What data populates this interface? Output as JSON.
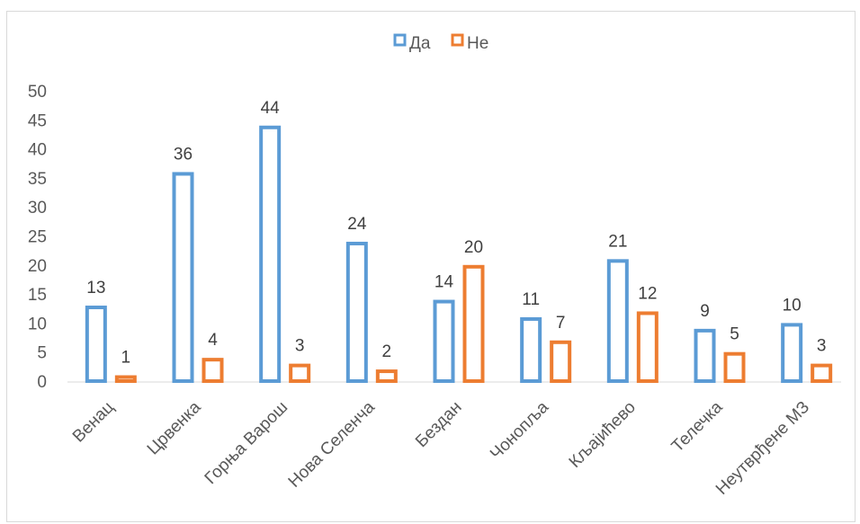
{
  "chart_data": {
    "type": "bar",
    "categories": [
      "Венац",
      "Црвенка",
      "Горња Варош",
      "Нова Селенча",
      "Бездан",
      "Чонопља",
      "Кљајићево",
      "Телечка",
      "Неутврђене МЗ"
    ],
    "series": [
      {
        "name": "Да",
        "color": "#5b9bd5",
        "values": [
          13,
          36,
          44,
          24,
          14,
          11,
          21,
          9,
          10
        ]
      },
      {
        "name": "Не",
        "color": "#ed7d31",
        "values": [
          1,
          4,
          3,
          2,
          20,
          7,
          12,
          5,
          3
        ]
      }
    ],
    "ylim": [
      0,
      50
    ],
    "yticks": [
      0,
      5,
      10,
      15,
      20,
      25,
      30,
      35,
      40,
      45,
      50
    ],
    "legend_position": "top-center",
    "grid": false,
    "data_labels": true,
    "bar_style": "outline"
  }
}
